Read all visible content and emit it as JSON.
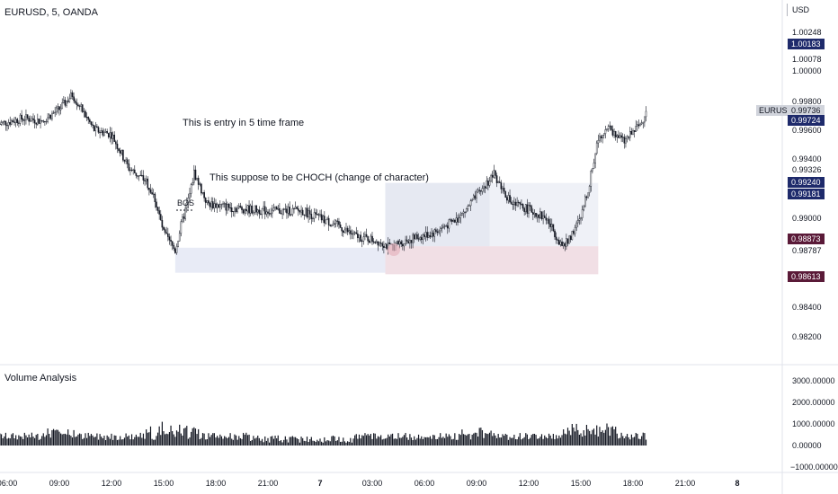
{
  "header": {
    "symbol_title": "EURUSD, 5, OANDA",
    "currency": "USD"
  },
  "price_axis": {
    "ticks": [
      "1.00248",
      "1.00078",
      "1.00000",
      "0.99800",
      "0.99600",
      "0.99400",
      "0.99326",
      "0.99000",
      "0.98787",
      "0.98400",
      "0.98200"
    ],
    "badges": [
      {
        "text": "1.00183",
        "color": "#1e2a6b"
      },
      {
        "text": "0.99736",
        "color": "#d1d4dc"
      },
      {
        "text": "0.99724",
        "color": "#1e2a6b"
      },
      {
        "text": "0.99240",
        "color": "#1e2a6b"
      },
      {
        "text": "0.99181",
        "color": "#1e2a6b"
      },
      {
        "text": "0.98873",
        "color": "#5a1a38"
      },
      {
        "text": "0.98613",
        "color": "#5a1a38"
      }
    ],
    "symbol_label": "EURUSD"
  },
  "volume_pane": {
    "label": "Volume Analysis",
    "ticks": [
      "3000.00000",
      "2000.00000",
      "1000.00000",
      "0.00000",
      "−1000.00000"
    ]
  },
  "time_axis": {
    "labels": [
      "06:00",
      "09:00",
      "12:00",
      "15:00",
      "18:00",
      "21:00",
      "7",
      "03:00",
      "06:00",
      "09:00",
      "12:00",
      "15:00",
      "18:00",
      "21:00",
      "8"
    ]
  },
  "annotations": {
    "entry_text": "This is entry in 5 time frame",
    "choch_text": "This suppose to be CHOCH (change of character)",
    "bos_label": "BOS"
  },
  "colors": {
    "candle": "#131722",
    "zone_blue": "#d9def0",
    "zone_gray": "#e5e7f2",
    "zone_pink": "#ecd4dc",
    "volume": "#131722",
    "badge_navy": "#1e2a6b",
    "badge_maroon": "#5a1a38"
  },
  "chart_data": {
    "type": "candlestick",
    "symbol": "EURUSD",
    "timeframe": "5",
    "close_path": [
      {
        "t": "05:30",
        "price": 0.9964
      },
      {
        "t": "07:00",
        "price": 0.9968
      },
      {
        "t": "08:00",
        "price": 0.9966
      },
      {
        "t": "09:00",
        "price": 0.9974
      },
      {
        "t": "09:45",
        "price": 0.9984
      },
      {
        "t": "11:00",
        "price": 0.996
      },
      {
        "t": "12:00",
        "price": 0.9957
      },
      {
        "t": "13:00",
        "price": 0.9934
      },
      {
        "t": "14:00",
        "price": 0.9925
      },
      {
        "t": "14:30",
        "price": 0.9913
      },
      {
        "t": "15:00",
        "price": 0.989
      },
      {
        "t": "15:40",
        "price": 0.9878
      },
      {
        "t": "16:00",
        "price": 0.9895
      },
      {
        "t": "16:30",
        "price": 0.9916
      },
      {
        "t": "16:45",
        "price": 0.9931
      },
      {
        "t": "17:30",
        "price": 0.991
      },
      {
        "t": "19:00",
        "price": 0.9907
      },
      {
        "t": "21:00",
        "price": 0.9905
      },
      {
        "t": "23:00",
        "price": 0.9905
      },
      {
        "t": "01:00",
        "price": 0.9895
      },
      {
        "t": "02:00",
        "price": 0.9888
      },
      {
        "t": "03:30",
        "price": 0.9884
      },
      {
        "t": "04:00",
        "price": 0.988
      },
      {
        "t": "05:00",
        "price": 0.9885
      },
      {
        "t": "06:30",
        "price": 0.989
      },
      {
        "t": "08:00",
        "price": 0.99
      },
      {
        "t": "09:00",
        "price": 0.9915
      },
      {
        "t": "10:00",
        "price": 0.993
      },
      {
        "t": "11:00",
        "price": 0.991
      },
      {
        "t": "12:00",
        "price": 0.9906
      },
      {
        "t": "13:00",
        "price": 0.99
      },
      {
        "t": "14:00",
        "price": 0.988
      },
      {
        "t": "15:00",
        "price": 0.99
      },
      {
        "t": "15:30",
        "price": 0.9924
      },
      {
        "t": "16:00",
        "price": 0.9955
      },
      {
        "t": "16:30",
        "price": 0.9962
      },
      {
        "t": "17:30",
        "price": 0.9952
      },
      {
        "t": "18:30",
        "price": 0.9965
      },
      {
        "t": "18:45",
        "price": 0.9974
      }
    ],
    "zones": [
      {
        "name": "bos-demand-zone",
        "from": "15:40",
        "to": "03:45",
        "top": 0.988,
        "bottom": 0.9863,
        "color": "blue"
      },
      {
        "name": "choch-range-zone",
        "from": "03:45",
        "to": "09:45",
        "top": 0.9924,
        "bottom": 0.9881,
        "color": "blue-gray"
      },
      {
        "name": "post-choch-range-zone",
        "from": "09:45",
        "to": "16:00",
        "top": 0.9924,
        "bottom": 0.9881,
        "color": "gray"
      },
      {
        "name": "entry-zone",
        "from": "03:45",
        "to": "16:00",
        "top": 0.9881,
        "bottom": 0.9862,
        "color": "pink"
      }
    ],
    "volume_ylim": [
      -1000,
      3000
    ]
  }
}
